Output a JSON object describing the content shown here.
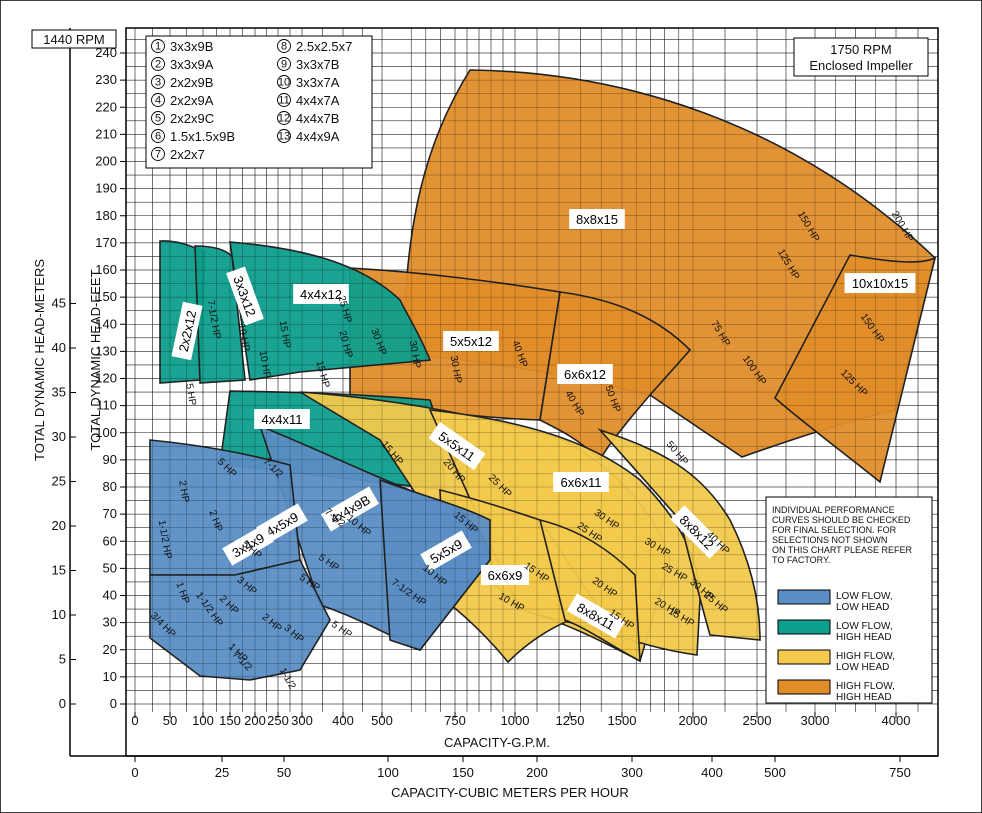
{
  "chart_data": {
    "type": "area",
    "title": "1750 RPM\nEnclosed Impeller",
    "rpm_box": "1440 RPM",
    "xlabel_gpm": "CAPACITY-G.P.M.",
    "xlabel_m3h": "CAPACITY-CUBIC METERS PER HOUR",
    "ylabel_feet": "TOTAL DYNAMIC HEAD-FEET",
    "ylabel_meters": "TOTAL DYNAMIC HEAD-METERS",
    "gpm_ticks": [
      "0",
      "50",
      "100",
      "150",
      "200",
      "250",
      "300",
      "400",
      "500",
      "750",
      "1000",
      "1250",
      "1500",
      "2000",
      "2500",
      "3000",
      "4000"
    ],
    "m3h_ticks": [
      "0",
      "25",
      "50",
      "100",
      "150",
      "200",
      "300",
      "400",
      "500",
      "750"
    ],
    "feet_ticks": [
      0,
      10,
      20,
      30,
      40,
      50,
      60,
      70,
      80,
      90,
      100,
      110,
      120,
      130,
      140,
      150,
      160,
      170,
      180,
      190,
      200,
      210,
      220,
      230,
      240
    ],
    "meter_ticks": [
      0,
      5,
      10,
      15,
      20,
      25,
      30,
      35,
      40,
      45
    ],
    "pump_list": [
      {
        "num": "1",
        "model": "3x3x9B"
      },
      {
        "num": "2",
        "model": "3x3x9A"
      },
      {
        "num": "3",
        "model": "2x2x9B"
      },
      {
        "num": "4",
        "model": "2x2x9A"
      },
      {
        "num": "5",
        "model": "2x2x9C"
      },
      {
        "num": "6",
        "model": "1.5x1.5x9B"
      },
      {
        "num": "7",
        "model": "2x2x7"
      },
      {
        "num": "8",
        "model": "2.5x2.5x7"
      },
      {
        "num": "9",
        "model": "3x3x7B"
      },
      {
        "num": "10",
        "model": "3x3x7A"
      },
      {
        "num": "11",
        "model": "4x4x7A"
      },
      {
        "num": "12",
        "model": "4x4x7B"
      },
      {
        "num": "13",
        "model": "4x4x9A"
      }
    ],
    "categories_legend": [
      {
        "label": "LOW FLOW,\nLOW HEAD",
        "color": "#5b8ec4"
      },
      {
        "label": "LOW FLOW,\nHIGH HEAD",
        "color": "#0e9e8c"
      },
      {
        "label": "HIGH FLOW,\nLOW HEAD",
        "color": "#f2c94c"
      },
      {
        "label": "HIGH FLOW,\nHIGH HEAD",
        "color": "#e08d2a"
      }
    ],
    "note": "INDIVIDUAL PERFORMANCE\nCURVES SHOULD BE CHECKED\nFOR FINAL SELECTION. FOR\nSELECTIONS NOT SHOWN\nON THIS CHART PLEASE REFER\nTO FACTORY.",
    "families": [
      {
        "name": "8x8x15",
        "category": "HIGH FLOW,\nHIGH HEAD",
        "gpm": [
          1000,
          2500
        ],
        "head_ft": [
          110,
          235
        ]
      },
      {
        "name": "10x10x15",
        "category": "HIGH FLOW,\nHIGH HEAD",
        "gpm": [
          2000,
          4000
        ],
        "head_ft": [
          80,
          165
        ]
      },
      {
        "name": "5x5x12",
        "category": "HIGH FLOW,\nHIGH HEAD",
        "gpm": [
          500,
          1250
        ],
        "head_ft": [
          100,
          160
        ]
      },
      {
        "name": "6x6x12",
        "category": "HIGH FLOW,\nHIGH HEAD",
        "gpm": [
          750,
          2000
        ],
        "head_ft": [
          90,
          155
        ]
      },
      {
        "name": "2x2x12",
        "category": "LOW FLOW,\nHIGH HEAD",
        "gpm": [
          50,
          200
        ],
        "head_ft": [
          90,
          172
        ]
      },
      {
        "name": "3x3x12",
        "category": "LOW FLOW,\nHIGH HEAD",
        "gpm": [
          100,
          300
        ],
        "head_ft": [
          90,
          172
        ]
      },
      {
        "name": "4x4x12",
        "category": "LOW FLOW,\nHIGH HEAD",
        "gpm": [
          200,
          500
        ],
        "head_ft": [
          90,
          170
        ]
      },
      {
        "name": "4x4x11",
        "category": "LOW FLOW,\nHIGH HEAD",
        "gpm": [
          100,
          750
        ],
        "head_ft": [
          75,
          115
        ]
      },
      {
        "name": "5x5x11",
        "category": "HIGH FLOW,\nLOW HEAD",
        "gpm": [
          300,
          1500
        ],
        "head_ft": [
          60,
          115
        ]
      },
      {
        "name": "6x6x11",
        "category": "HIGH FLOW,\nLOW HEAD",
        "gpm": [
          500,
          2000
        ],
        "head_ft": [
          35,
          110
        ]
      },
      {
        "name": "8x8x12",
        "category": "HIGH FLOW,\nLOW HEAD",
        "gpm": [
          1250,
          2500
        ],
        "head_ft": [
          20,
          100
        ]
      },
      {
        "name": "6x6x9",
        "category": "HIGH FLOW,\nLOW HEAD",
        "gpm": [
          500,
          1250
        ],
        "head_ft": [
          15,
          80
        ]
      },
      {
        "name": "8x8x11",
        "category": "HIGH FLOW,\nLOW HEAD",
        "gpm": [
          1000,
          2000
        ],
        "head_ft": [
          15,
          75
        ]
      },
      {
        "name": "4x4x9B",
        "category": "LOW FLOW,\nLOW HEAD",
        "gpm": [
          200,
          750
        ],
        "head_ft": [
          20,
          95
        ]
      },
      {
        "name": "5x5x9",
        "category": "LOW FLOW,\nLOW HEAD",
        "gpm": [
          300,
          900
        ],
        "head_ft": [
          20,
          75
        ]
      },
      {
        "name": "4x5x9",
        "category": "LOW FLOW,\nLOW HEAD",
        "gpm": [
          100,
          400
        ],
        "head_ft": [
          40,
          95
        ]
      },
      {
        "name": "3x4x9",
        "category": "LOW FLOW,\nLOW HEAD",
        "gpm": [
          100,
          300
        ],
        "head_ft": [
          35,
          80
        ]
      }
    ],
    "hp_labels": [
      "5 HP",
      "7-1/2 HP",
      "10 HP",
      "15 HP",
      "20 HP",
      "25 HP",
      "30 HP",
      "40 HP",
      "50 HP",
      "75 HP",
      "100 HP",
      "125 HP",
      "150 HP",
      "200 HP",
      "3 HP",
      "2 HP",
      "1-1/2 HP",
      "1 HP",
      "3/4 HP"
    ],
    "grid": true,
    "x_scale": "nonlinear",
    "legend_position": "bottom-right"
  }
}
